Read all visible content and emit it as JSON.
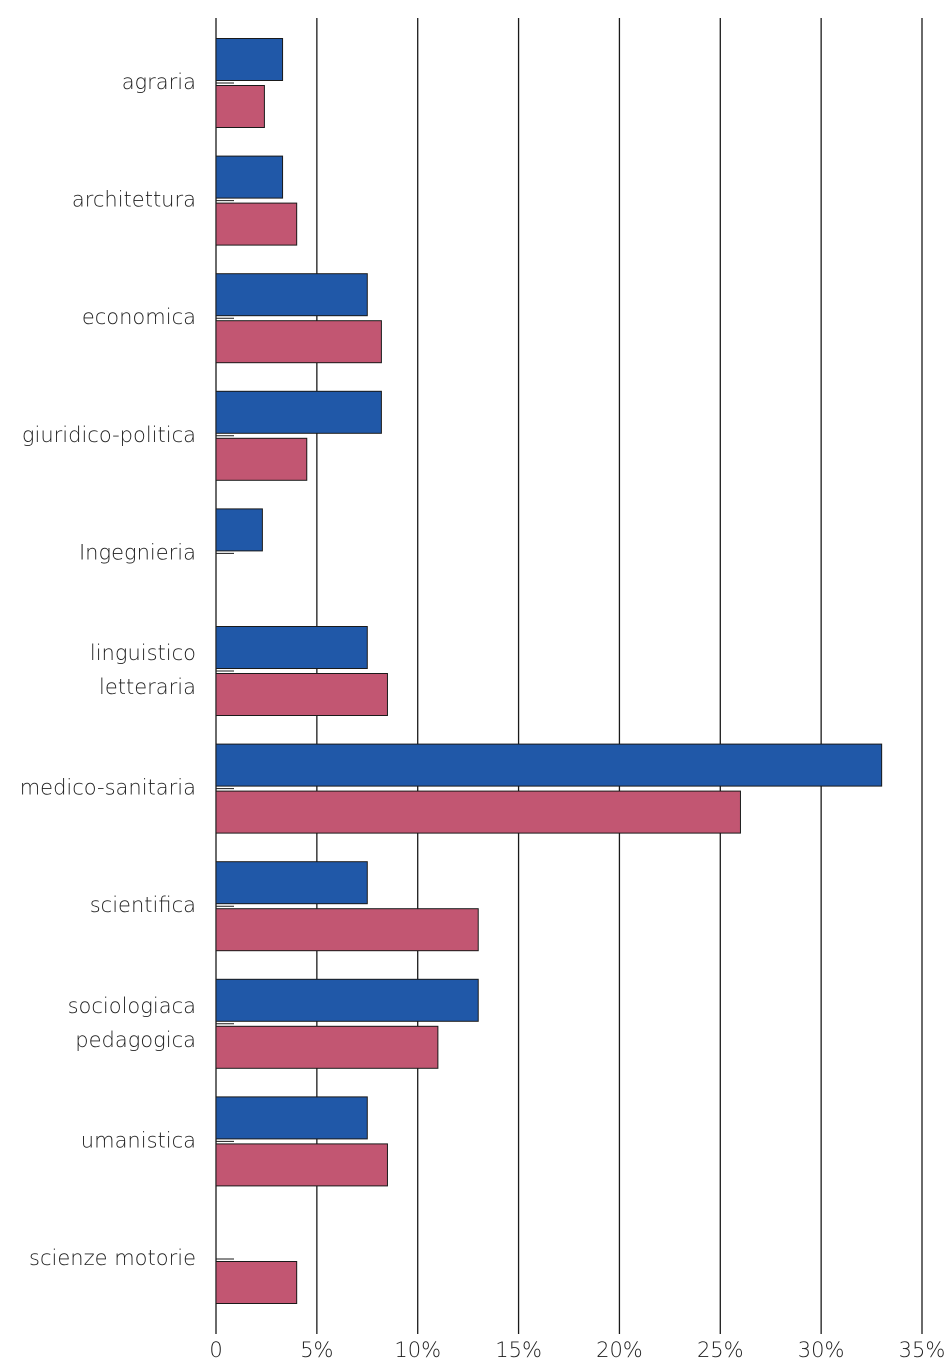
{
  "chart_data": {
    "type": "bar",
    "orientation": "horizontal",
    "categories": [
      [
        "agraria"
      ],
      [
        "architettura"
      ],
      [
        "economica"
      ],
      [
        "giuridico-politica"
      ],
      [
        "Ingegnieria"
      ],
      [
        "linguistico",
        "letteraria"
      ],
      [
        "medico-sanitaria"
      ],
      [
        "scientifica"
      ],
      [
        "sociologiaca",
        "pedagogica"
      ],
      [
        "umanistica"
      ],
      [
        "scienze motorie"
      ]
    ],
    "series": [
      {
        "color": "#2058a8",
        "values": [
          3.3,
          3.3,
          7.5,
          8.2,
          2.3,
          7.5,
          33.0,
          7.5,
          13.0,
          7.5,
          0
        ]
      },
      {
        "color": "#c25672",
        "values": [
          2.4,
          4.0,
          8.2,
          4.5,
          0,
          8.5,
          26.0,
          13.0,
          11.0,
          8.5,
          4.0
        ]
      }
    ],
    "xlim": [
      0,
      35
    ],
    "xticks": [
      0,
      5,
      10,
      15,
      20,
      25,
      30,
      35
    ],
    "xtick_labels": [
      "0",
      "5%",
      "10%",
      "15%",
      "20%",
      "25%",
      "30%",
      "35%"
    ],
    "grid": "vertical",
    "legend": "none"
  }
}
